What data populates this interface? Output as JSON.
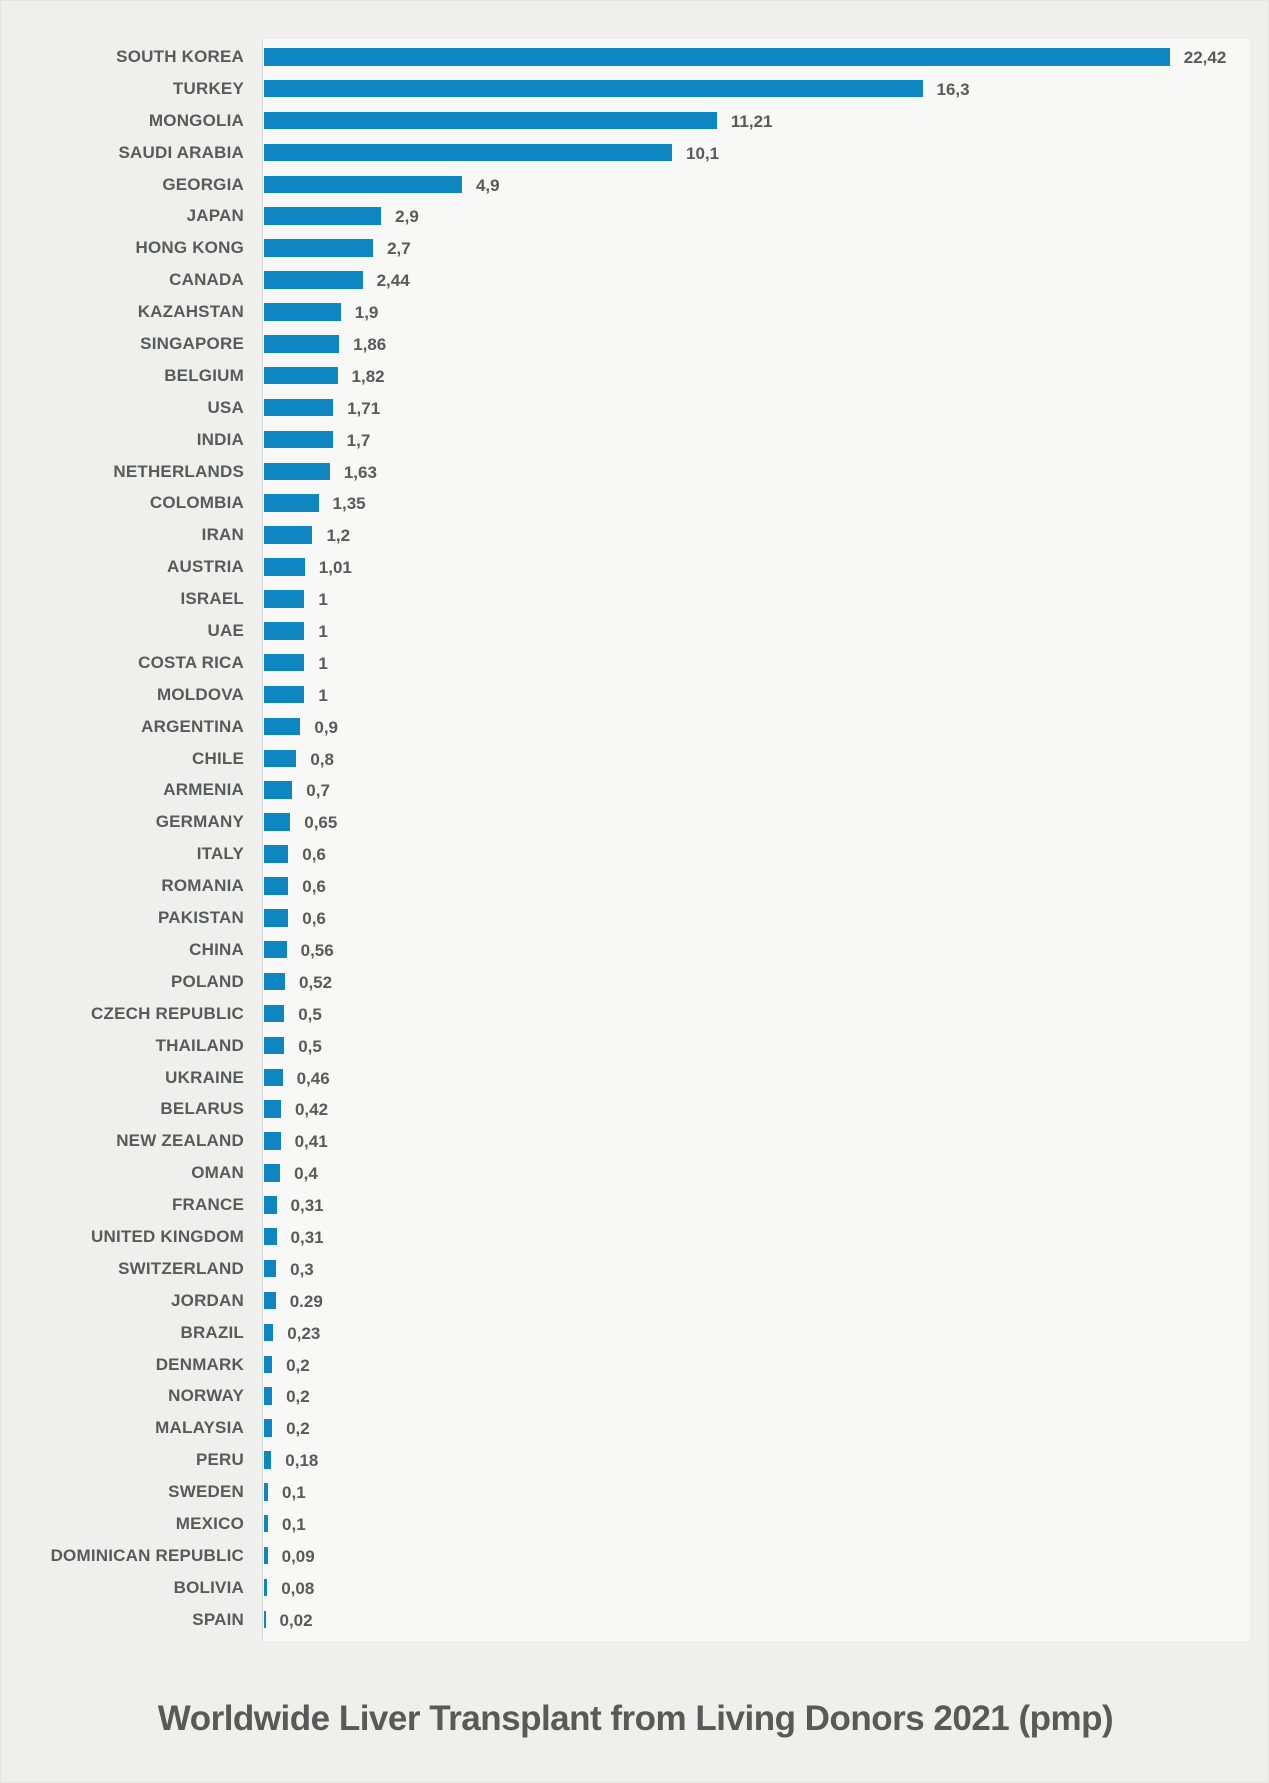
{
  "page": {
    "background_color": "#efefed",
    "plot_background_color": "#f8f8f6",
    "axis_line_color": "#d3dade"
  },
  "chart_data": {
    "type": "bar",
    "orientation": "horizontal",
    "title": "Worldwide Liver Transplant from Living Donors 2021 (pmp)",
    "bar_color": "#0e86c1",
    "text_color": "#595a5c",
    "xlim": [
      0,
      24.4
    ],
    "grid": false,
    "legend": "none",
    "value_label_position": "end-of-bar",
    "categories": [
      "SOUTH KOREA",
      "TURKEY",
      "MONGOLIA",
      "SAUDI ARABIA",
      "GEORGIA",
      "JAPAN",
      "HONG KONG",
      "CANADA",
      "KAZAHSTAN",
      "SINGAPORE",
      "BELGIUM",
      "USA",
      "INDIA",
      "NETHERLANDS",
      "COLOMBIA",
      "IRAN",
      "AUSTRIA",
      "ISRAEL",
      "UAE",
      "COSTA RICA",
      "MOLDOVA",
      "ARGENTINA",
      "CHILE",
      "ARMENIA",
      "GERMANY",
      "ITALY",
      "ROMANIA",
      "PAKISTAN",
      "CHINA",
      "POLAND",
      "CZECH REPUBLIC",
      "THAILAND",
      "UKRAINE",
      "BELARUS",
      "NEW ZEALAND",
      "OMAN",
      "FRANCE",
      "UNITED KINGDOM",
      "SWITZERLAND",
      "JORDAN",
      "BRAZIL",
      "DENMARK",
      "NORWAY",
      "MALAYSIA",
      "PERU",
      "SWEDEN",
      "MEXICO",
      "DOMINICAN REPUBLIC",
      "BOLIVIA",
      "SPAIN"
    ],
    "values": [
      22.42,
      16.3,
      11.21,
      10.1,
      4.9,
      2.9,
      2.7,
      2.44,
      1.9,
      1.86,
      1.82,
      1.71,
      1.7,
      1.63,
      1.35,
      1.2,
      1.01,
      1,
      1,
      1,
      1,
      0.9,
      0.8,
      0.7,
      0.65,
      0.6,
      0.6,
      0.6,
      0.56,
      0.52,
      0.5,
      0.5,
      0.46,
      0.42,
      0.41,
      0.4,
      0.31,
      0.31,
      0.3,
      0.29,
      0.23,
      0.2,
      0.2,
      0.2,
      0.18,
      0.1,
      0.1,
      0.09,
      0.08,
      0.02
    ],
    "value_labels": [
      "22,42",
      "16,3",
      "11,21",
      "10,1",
      "4,9",
      "2,9",
      "2,7",
      "2,44",
      "1,9",
      "1,86",
      "1,82",
      "1,71",
      "1,7",
      "1,63",
      "1,35",
      "1,2",
      "1,01",
      "1",
      "1",
      "1",
      "1",
      "0,9",
      "0,8",
      "0,7",
      "0,65",
      "0,6",
      "0,6",
      "0,6",
      "0,56",
      "0,52",
      "0,5",
      "0,5",
      "0,46",
      "0,42",
      "0,41",
      "0,4",
      "0,31",
      "0,31",
      "0,3",
      "0.29",
      "0,23",
      "0,2",
      "0,2",
      "0,2",
      "0,18",
      "0,1",
      "0,1",
      "0,09",
      "0,08",
      "0,02"
    ]
  }
}
